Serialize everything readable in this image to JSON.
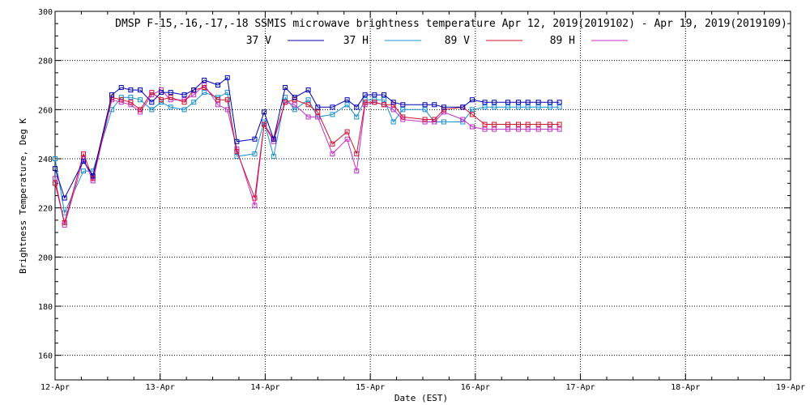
{
  "chart_data": {
    "type": "line",
    "title": "DMSP F-15,-16,-17,-18 SSMIS microwave brightness temperature Apr 12, 2019(2019102) - Apr 19, 2019(2019109)",
    "xlabel": "Date (EST)",
    "ylabel": "Brightness Temperature, Deg K",
    "xlim": [
      0,
      7
    ],
    "ylim": [
      150,
      300
    ],
    "x_tick_labels": [
      "12-Apr",
      "13-Apr",
      "14-Apr",
      "15-Apr",
      "16-Apr",
      "17-Apr",
      "18-Apr",
      "19-Apr"
    ],
    "y_tick_labels": [
      "160",
      "180",
      "200",
      "220",
      "240",
      "260",
      "280",
      "300"
    ],
    "grid": true,
    "legend_position": "top-center",
    "x": [
      0.0,
      0.09,
      0.27,
      0.36,
      0.54,
      0.63,
      0.72,
      0.81,
      0.92,
      1.01,
      1.1,
      1.23,
      1.32,
      1.42,
      1.55,
      1.64,
      1.73,
      1.9,
      1.99,
      2.08,
      2.19,
      2.28,
      2.41,
      2.5,
      2.64,
      2.78,
      2.87,
      2.95,
      3.04,
      3.13,
      3.22,
      3.31,
      3.52,
      3.61,
      3.7,
      3.88,
      3.97,
      4.09,
      4.18,
      4.31,
      4.41,
      4.5,
      4.6,
      4.71,
      4.8
    ],
    "series": [
      {
        "name": "37 V",
        "color": "#0000b0",
        "values": [
          236,
          224,
          239,
          233,
          266,
          269,
          268,
          268,
          263,
          267,
          267,
          266,
          268,
          272,
          270,
          273,
          247,
          248,
          259,
          248,
          269,
          265,
          268,
          261,
          261,
          264,
          261,
          266,
          266,
          266,
          263,
          262,
          262,
          262,
          261,
          261,
          264,
          263,
          263,
          263,
          263,
          263,
          263,
          263,
          263
        ]
      },
      {
        "name": "37 H",
        "color": "#1a90d0",
        "values": [
          240,
          218,
          235,
          235,
          260,
          265,
          265,
          264,
          260,
          263,
          261,
          260,
          263,
          267,
          265,
          267,
          241,
          242,
          255,
          241,
          265,
          260,
          264,
          257,
          258,
          262,
          257,
          264,
          264,
          264,
          255,
          260,
          260,
          255,
          255,
          255,
          260,
          261,
          261,
          261,
          261,
          261,
          261,
          261,
          261
        ]
      },
      {
        "name": "89 V",
        "color": "#d01030",
        "values": [
          230,
          214,
          242,
          232,
          265,
          264,
          263,
          260,
          267,
          264,
          265,
          263,
          268,
          269,
          264,
          264,
          243,
          224,
          254,
          248,
          263,
          264,
          262,
          259,
          246,
          251,
          242,
          263,
          263,
          262,
          262,
          257,
          256,
          256,
          260,
          261,
          258,
          254,
          254,
          254,
          254,
          254,
          254,
          254,
          254
        ]
      },
      {
        "name": "89 H",
        "color": "#c030c8",
        "values": [
          232,
          213,
          240,
          231,
          264,
          263,
          262,
          259,
          266,
          268,
          264,
          264,
          266,
          270,
          262,
          260,
          244,
          221,
          254,
          247,
          263,
          262,
          257,
          257,
          242,
          248,
          235,
          262,
          263,
          262,
          260,
          256,
          255,
          255,
          259,
          256,
          253,
          252,
          252,
          252,
          252,
          252,
          252,
          252,
          252
        ]
      }
    ]
  }
}
